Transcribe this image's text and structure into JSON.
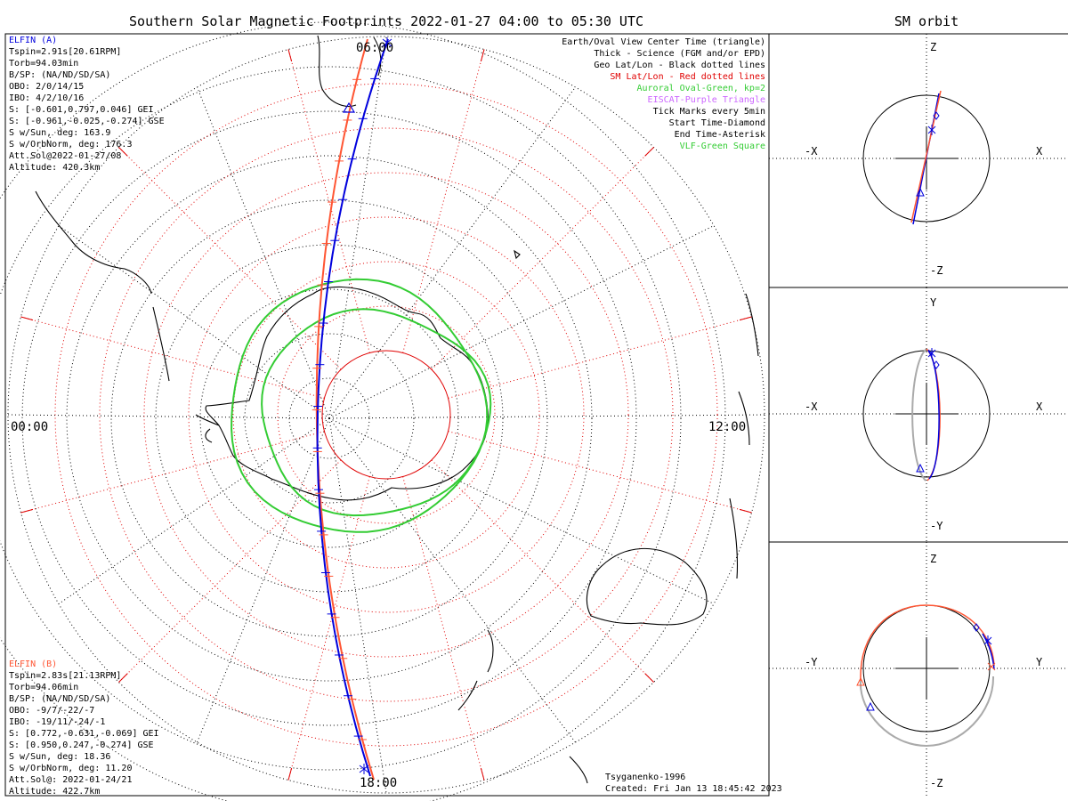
{
  "title": "Southern Solar Magnetic Footprints 2022-01-27 04:00 to 05:30 UTC",
  "orbit_title": "SM orbit",
  "mlt_labels": {
    "top": "06:00",
    "left": "00:00",
    "right": "12:00",
    "bottom": "18:00"
  },
  "elfin_a": {
    "name": "ELFIN (A)",
    "lines": [
      "Tspin=2.91s[20.61RPM]",
      "Torb=94.03min",
      "B/SP: (NA/ND/SD/SA)",
      "OBO: 2/0/14/15",
      "IBO: 4/2/10/16",
      "S: [-0.601,0.797,0.046] GEI",
      "S: [-0.961,-0.025,-0.274] GSE",
      "S w/Sun, deg: 163.9",
      "S w/OrbNorm, deg: 176.3",
      "Att.Sol@2022-01-27/08",
      "Altitude: 420.3km"
    ]
  },
  "elfin_b": {
    "name": "ELFIN (B)",
    "lines": [
      "Tspin=2.83s[21.13RPM]",
      "Torb=94.06min",
      "B/SP: (NA/ND/SD/SA)",
      "OBO: -9/7/-22/-7",
      "IBO: -19/11/-24/-1",
      "S: [0.772,-0.631,-0.069] GEI",
      "S: [0.950,0.247,-0.274] GSE",
      "S w/Sun, deg: 18.36",
      "S w/OrbNorm, deg: 11.20",
      "Att.Sol@: 2022-01-24/21",
      "Altitude: 422.7km"
    ]
  },
  "legend": [
    {
      "text": "Earth/Oval View Center Time (triangle)",
      "color": "#000000"
    },
    {
      "text": "Thick - Science (FGM and/or EPD)",
      "color": "#000000"
    },
    {
      "text": "Geo Lat/Lon - Black dotted lines",
      "color": "#000000"
    },
    {
      "text": "SM Lat/Lon - Red dotted lines",
      "color": "#e00000"
    },
    {
      "text": "Auroral Oval-Green, kp=2",
      "color": "#33cc33"
    },
    {
      "text": "EISCAT-Purple Triangle",
      "color": "#cc66ff"
    },
    {
      "text": "Tick Marks every 5min",
      "color": "#000000"
    },
    {
      "text": "Start Time-Diamond",
      "color": "#000000"
    },
    {
      "text": "End Time-Asterisk",
      "color": "#000000"
    },
    {
      "text": "VLF-Green Square",
      "color": "#33cc33"
    }
  ],
  "footer": {
    "model": "Tsyganenko-1996",
    "created": "Created: Fri Jan 13 18:45:42 2023"
  },
  "panels": [
    {
      "top": "Z",
      "bottom": "-Z",
      "left": "-X",
      "right": "X"
    },
    {
      "top": "Y",
      "bottom": "-Y",
      "left": "-X",
      "right": "X"
    },
    {
      "top": "Z",
      "bottom": "-Z",
      "left": "-Y",
      "right": "Y"
    }
  ],
  "colors": {
    "elfin_a": "#0000dd",
    "elfin_b": "#ff5533",
    "oval": "#33cc33",
    "sm_grid": "#e00000",
    "geo_grid": "#000000"
  }
}
